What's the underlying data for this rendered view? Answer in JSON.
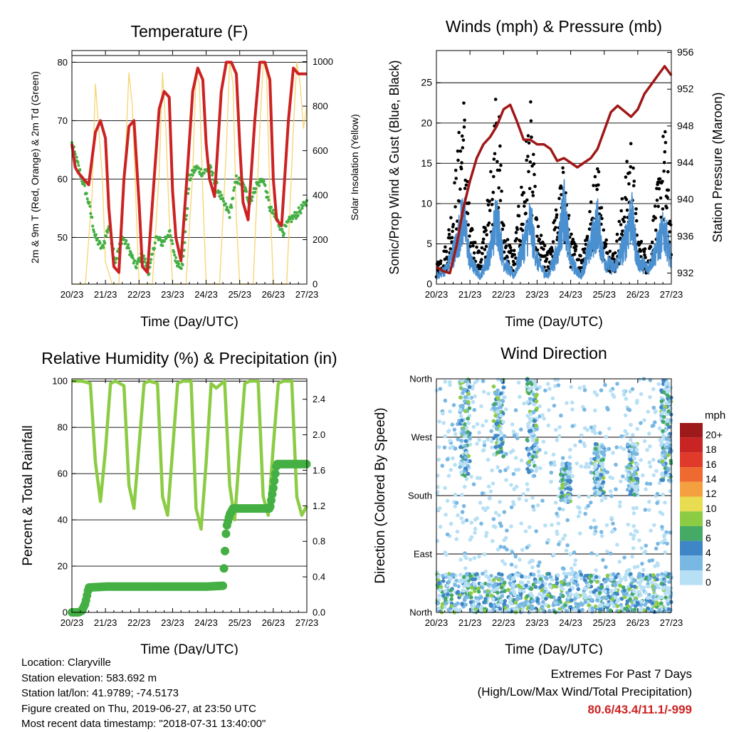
{
  "chart_data": [
    {
      "type": "line",
      "title": "Temperature (F)",
      "xlabel": "Time (Day/UTC)",
      "ylabel": "2m & 9m T (Red, Orange) & 2m Td (Green)",
      "ylabel_right": "Solar Insolation (Yellow)",
      "x_ticks": [
        "20/23",
        "21/23",
        "22/23",
        "23/23",
        "24/23",
        "25/23",
        "26/23",
        "27/23"
      ],
      "y_ticks": [
        50,
        60,
        70,
        80
      ],
      "y_ticks_right": [
        0,
        200,
        400,
        600,
        800,
        1000
      ],
      "ylim": [
        42,
        82
      ],
      "ylim_right": [
        0,
        1050
      ],
      "grid": true,
      "series": [
        {
          "name": "2m T",
          "color": "#cc2222",
          "x": [
            0,
            0.1,
            0.2,
            0.35,
            0.5,
            0.7,
            0.85,
            1.0,
            1.1,
            1.25,
            1.4,
            1.55,
            1.7,
            1.85,
            2.0,
            2.1,
            2.25,
            2.45,
            2.6,
            2.75,
            2.9,
            3.0,
            3.1,
            3.25,
            3.45,
            3.6,
            3.75,
            3.9,
            4.0,
            4.1,
            4.25,
            4.45,
            4.6,
            4.75,
            4.9,
            5.0,
            5.1,
            5.25,
            5.45,
            5.6,
            5.75,
            5.9,
            6.0,
            6.1,
            6.25,
            6.45,
            6.6,
            6.75,
            6.9,
            7.0
          ],
          "y": [
            66,
            62,
            61,
            60,
            59,
            68,
            70,
            67,
            55,
            45,
            44,
            60,
            69,
            70,
            56,
            45,
            44,
            60,
            72,
            75,
            74,
            58,
            50,
            46,
            62,
            75,
            79,
            77,
            66,
            60,
            57,
            75,
            80,
            80,
            78,
            66,
            56,
            53,
            70,
            80,
            80,
            77,
            60,
            53,
            52,
            70,
            79,
            78,
            78,
            78
          ]
        },
        {
          "name": "Td",
          "color": "#44b044",
          "x": [
            0,
            0.3,
            0.5,
            0.7,
            0.9,
            1.1,
            1.3,
            1.5,
            1.7,
            1.9,
            2.1,
            2.3,
            2.5,
            2.7,
            2.9,
            3.1,
            3.3,
            3.5,
            3.7,
            3.9,
            4.1,
            4.3,
            4.5,
            4.7,
            4.9,
            5.1,
            5.3,
            5.5,
            5.7,
            5.9,
            6.1,
            6.3,
            6.5,
            6.7,
            7.0
          ],
          "y": [
            66,
            60,
            56,
            50,
            48,
            52,
            46,
            50,
            48,
            45,
            47,
            44,
            50,
            49,
            51,
            46,
            45,
            60,
            62,
            61,
            62,
            59,
            56,
            54,
            60,
            59,
            56,
            59,
            60,
            55,
            53,
            51,
            53,
            54,
            56
          ]
        },
        {
          "name": "Solar Insolation",
          "color": "#f5d060",
          "axis": "right",
          "x": [
            0.0,
            0.2,
            0.4,
            0.6,
            0.7,
            0.8,
            0.9,
            1.0,
            1.2,
            1.4,
            1.6,
            1.7,
            1.8,
            1.9,
            2.0,
            2.2,
            2.4,
            2.6,
            2.7,
            2.8,
            2.9,
            3.0,
            3.2,
            3.4,
            3.6,
            3.7,
            3.8,
            3.9,
            4.0,
            4.2,
            4.4,
            4.6,
            4.7,
            4.8,
            4.9,
            5.0,
            5.2,
            5.4,
            5.6,
            5.7,
            5.8,
            5.9,
            6.0,
            6.2,
            6.4,
            6.6,
            6.7,
            6.8,
            6.9,
            7.0
          ],
          "y": [
            0,
            0,
            0,
            400,
            900,
            700,
            500,
            100,
            0,
            0,
            600,
            950,
            800,
            400,
            0,
            0,
            0,
            500,
            950,
            700,
            300,
            0,
            0,
            0,
            500,
            950,
            900,
            400,
            0,
            0,
            0,
            600,
            1000,
            900,
            300,
            0,
            0,
            0,
            700,
            1000,
            950,
            400,
            0,
            0,
            0,
            700,
            1000,
            900,
            700,
            800
          ]
        }
      ]
    },
    {
      "type": "line",
      "title": "Winds (mph) & Pressure (mb)",
      "xlabel": "Time (Day/UTC)",
      "ylabel": "Sonic/Prop Wind & Gust (Blue, Black)",
      "ylabel_right": "Station Pressure (Maroon)",
      "x_ticks": [
        "20/23",
        "21/23",
        "22/23",
        "23/23",
        "24/23",
        "25/23",
        "26/23",
        "27/23"
      ],
      "y_ticks": [
        0,
        5,
        10,
        15,
        20,
        25
      ],
      "y_ticks_right": [
        932,
        936,
        940,
        944,
        948,
        952,
        956
      ],
      "ylim": [
        0,
        29
      ],
      "ylim_right": [
        930.8,
        956.2
      ],
      "grid": true,
      "series": [
        {
          "name": "Station Pressure",
          "color": "#a01818",
          "axis": "right",
          "x": [
            0,
            0.2,
            0.4,
            0.6,
            0.8,
            1.0,
            1.2,
            1.4,
            1.6,
            1.8,
            2.0,
            2.2,
            2.4,
            2.6,
            2.8,
            3.0,
            3.2,
            3.4,
            3.6,
            3.8,
            4.0,
            4.2,
            4.4,
            4.6,
            4.8,
            5.0,
            5.2,
            5.4,
            5.6,
            5.8,
            6.0,
            6.2,
            6.4,
            6.6,
            6.8,
            7.0
          ],
          "y": [
            932.7,
            932.2,
            932.0,
            935.0,
            939.0,
            942.0,
            944.5,
            946.0,
            946.8,
            948.0,
            949.8,
            950.3,
            948.5,
            946.5,
            946.5,
            946.0,
            946.0,
            945.5,
            944.2,
            944.5,
            944.0,
            943.5,
            944.0,
            944.5,
            945.5,
            947.5,
            949.5,
            950.2,
            949.6,
            949.0,
            949.8,
            951.5,
            952.5,
            953.5,
            954.5,
            953.5
          ]
        },
        {
          "name": "Wind (Sonic/Prop)",
          "color": "#4a90d0",
          "x": [
            0,
            0.3,
            0.6,
            0.8,
            1.0,
            1.3,
            1.6,
            1.8,
            2.0,
            2.3,
            2.6,
            2.8,
            3.0,
            3.3,
            3.6,
            3.8,
            4.0,
            4.3,
            4.6,
            4.8,
            5.0,
            5.3,
            5.6,
            5.8,
            6.0,
            6.3,
            6.6,
            6.8,
            7.0
          ],
          "y": [
            1,
            2,
            5,
            9,
            3,
            1,
            4,
            9,
            3,
            1,
            5,
            8,
            3,
            1,
            4,
            10,
            3,
            1,
            5,
            8,
            3,
            2,
            5,
            9,
            3,
            2,
            5,
            7,
            3
          ]
        },
        {
          "name": "Gust",
          "color": "#000000",
          "x": [
            0,
            0.3,
            0.6,
            0.8,
            1.0,
            1.3,
            1.6,
            1.8,
            2.0,
            2.3,
            2.6,
            2.8,
            3.0,
            3.3,
            3.6,
            3.8,
            4.0,
            4.3,
            4.6,
            4.8,
            5.0,
            5.3,
            5.6,
            5.8,
            6.0,
            6.3,
            6.6,
            6.8,
            7.0
          ],
          "y": [
            2,
            4,
            12,
            20,
            6,
            3,
            10,
            22,
            6,
            3,
            12,
            18,
            6,
            3,
            8,
            12,
            5,
            3,
            8,
            13,
            5,
            3,
            10,
            15,
            5,
            3,
            10,
            16,
            6
          ]
        }
      ]
    },
    {
      "type": "line",
      "title": "Relative Humidity (%) & Precipitation (in)",
      "xlabel": "Time (Day/UTC)",
      "ylabel": "Percent & Total Rainfall",
      "x_ticks": [
        "20/23",
        "21/23",
        "22/23",
        "23/23",
        "24/23",
        "25/23",
        "26/23",
        "27/23"
      ],
      "y_ticks": [
        0,
        20,
        40,
        60,
        80,
        100
      ],
      "y_ticks_right": [
        "0.0",
        "0.4",
        "0.8",
        "1.2",
        "1.6",
        "2.0",
        "2.4"
      ],
      "ylim": [
        0,
        101
      ],
      "ylim_right": [
        0,
        2.63
      ],
      "grid": true,
      "series": [
        {
          "name": "Relative Humidity",
          "color": "#8ccc44",
          "x": [
            0,
            0.3,
            0.55,
            0.7,
            0.85,
            1.0,
            1.15,
            1.3,
            1.55,
            1.7,
            1.85,
            2.0,
            2.15,
            2.3,
            2.55,
            2.7,
            2.85,
            3.0,
            3.15,
            3.3,
            3.55,
            3.7,
            3.85,
            4.0,
            4.15,
            4.3,
            4.55,
            4.7,
            4.85,
            5.0,
            5.15,
            5.3,
            5.55,
            5.7,
            5.85,
            6.0,
            6.15,
            6.3,
            6.55,
            6.7,
            6.85,
            7.0
          ],
          "y": [
            100,
            100,
            99,
            65,
            48,
            70,
            99,
            100,
            98,
            55,
            45,
            72,
            99,
            100,
            99,
            50,
            42,
            70,
            99,
            100,
            100,
            45,
            36,
            65,
            99,
            97,
            100,
            55,
            40,
            70,
            99,
            100,
            100,
            50,
            42,
            72,
            99,
            100,
            100,
            50,
            42,
            46
          ]
        },
        {
          "name": "Total Precipitation",
          "color": "#44b044",
          "axis": "right",
          "x": [
            0,
            0.2,
            0.3,
            0.4,
            0.5,
            1.0,
            2.0,
            3.0,
            4.0,
            4.5,
            4.6,
            4.7,
            4.8,
            5.0,
            5.5,
            5.9,
            6.0,
            6.1,
            6.5,
            7.0
          ],
          "y": [
            0,
            0,
            0.02,
            0.1,
            0.28,
            0.29,
            0.29,
            0.29,
            0.29,
            0.3,
            0.95,
            1.1,
            1.17,
            1.17,
            1.17,
            1.17,
            1.4,
            1.67,
            1.67,
            1.67
          ]
        }
      ]
    },
    {
      "type": "scatter",
      "title": "Wind Direction",
      "xlabel": "Time (Day/UTC)",
      "ylabel": "Direction (Colored By Speed)",
      "x_ticks": [
        "20/23",
        "21/23",
        "22/23",
        "23/23",
        "24/23",
        "25/23",
        "26/23",
        "27/23"
      ],
      "y_ticks": [
        "North",
        "East",
        "South",
        "West",
        "North"
      ],
      "ylim": [
        0,
        360
      ],
      "grid": true,
      "legend_title": "mph",
      "legend_placement": "right",
      "legend_labels": [
        "20+",
        "18",
        "16",
        "14",
        "12",
        "10",
        "8",
        "6",
        "4",
        "2",
        "0"
      ],
      "legend_colors": [
        "#9e1a1a",
        "#c82424",
        "#e03a2a",
        "#ee6a30",
        "#f5a040",
        "#e8dc50",
        "#8ccc44",
        "#44aa66",
        "#3f86c6",
        "#7ab8e4",
        "#b8e0f5"
      ],
      "direction_clusters": [
        {
          "day_start": 0.0,
          "day_end": 7.0,
          "dir_start": 0,
          "dir_end": 60
        },
        {
          "day_start": 0.7,
          "day_end": 1.0,
          "dir_start": 210,
          "dir_end": 360
        },
        {
          "day_start": 1.7,
          "day_end": 2.0,
          "dir_start": 240,
          "dir_end": 360
        },
        {
          "day_start": 2.7,
          "day_end": 3.0,
          "dir_start": 210,
          "dir_end": 360
        },
        {
          "day_start": 3.7,
          "day_end": 4.0,
          "dir_start": 170,
          "dir_end": 230
        },
        {
          "day_start": 4.7,
          "day_end": 5.0,
          "dir_start": 180,
          "dir_end": 260
        },
        {
          "day_start": 5.7,
          "day_end": 6.0,
          "dir_start": 180,
          "dir_end": 260
        },
        {
          "day_start": 6.7,
          "day_end": 7.0,
          "dir_start": 200,
          "dir_end": 360
        }
      ]
    }
  ],
  "info": {
    "location": "Location: Claryville",
    "elevation": "Station elevation: 583.692 m",
    "latlon": "Station lat/lon: 41.9789; -74.5173",
    "created": "Figure created on Thu, 2019-06-27, at 23:50 UTC",
    "recent": "Most recent data timestamp: \"2018-07-31 13:40:00\""
  },
  "extremes": {
    "line1": "Extremes For Past 7 Days",
    "line2": "(High/Low/Max Wind/Total Precipitation)",
    "values": "80.6/43.4/11.1/-999"
  }
}
